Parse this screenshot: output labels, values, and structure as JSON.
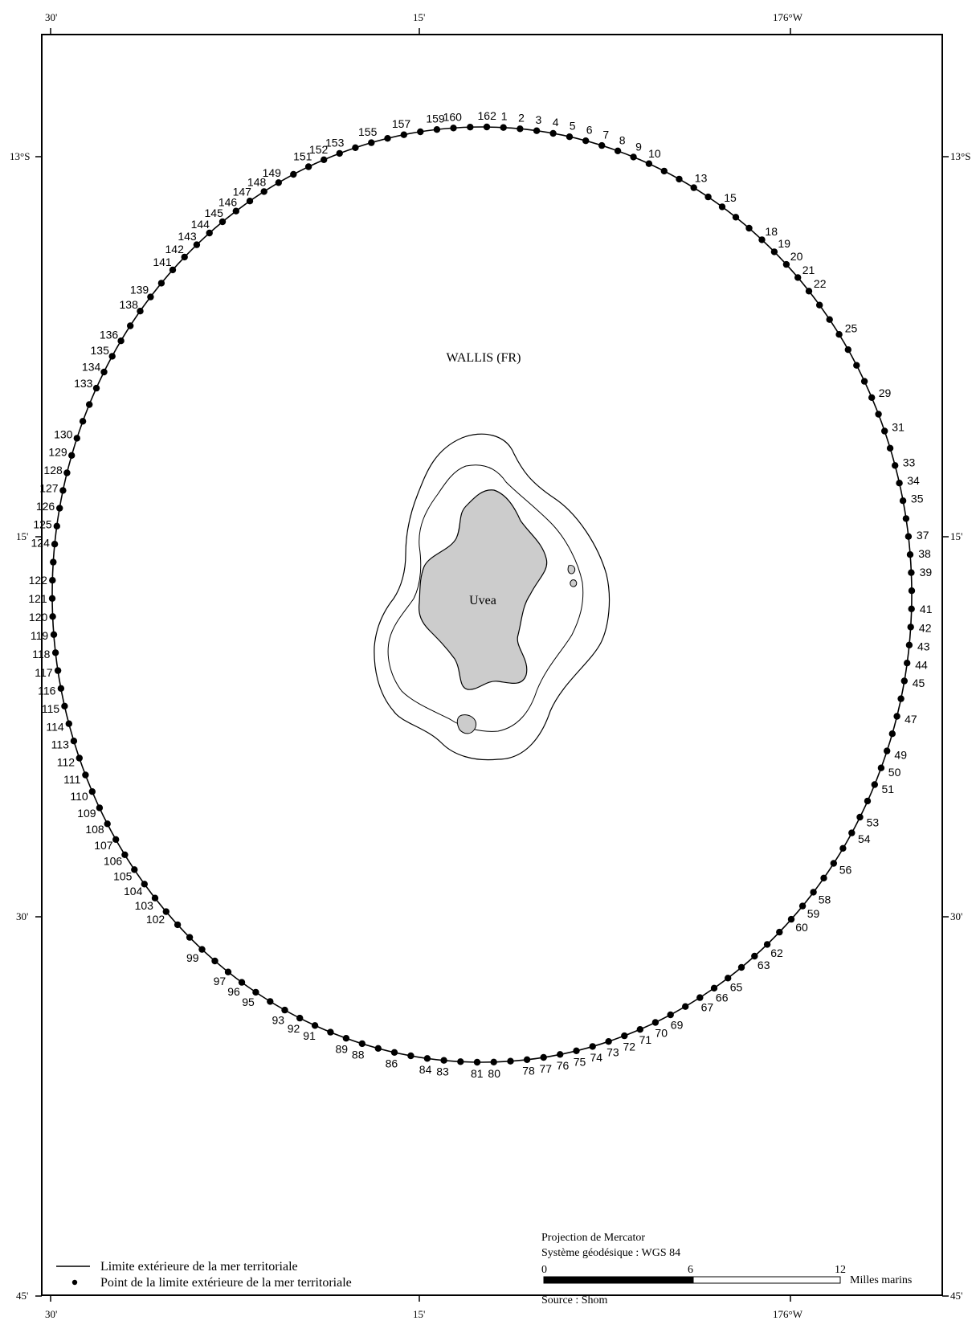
{
  "map": {
    "territory_label": "WALLIS (FR)",
    "island_label": "Uvea",
    "longitude_ticks": [
      "30'",
      "15'",
      "176°W"
    ],
    "latitude_ticks_left": [
      "13°S",
      "15'",
      "30'",
      "45'"
    ],
    "latitude_ticks_right": [
      "13°S",
      "15'",
      "30'",
      "45'"
    ],
    "colors": {
      "land": "#cccccc",
      "boundary": "#000000",
      "frame": "#000000"
    }
  },
  "boundary_points": {
    "point_count": 162,
    "labelled_points": [
      1,
      2,
      3,
      4,
      5,
      6,
      7,
      8,
      9,
      10,
      13,
      15,
      18,
      19,
      20,
      21,
      22,
      25,
      29,
      31,
      33,
      34,
      35,
      37,
      38,
      39,
      41,
      42,
      43,
      44,
      45,
      47,
      49,
      50,
      51,
      53,
      54,
      56,
      58,
      59,
      60,
      62,
      63,
      65,
      66,
      67,
      69,
      70,
      71,
      72,
      73,
      74,
      75,
      76,
      77,
      78,
      80,
      81,
      83,
      84,
      86,
      88,
      89,
      91,
      92,
      93,
      95,
      96,
      97,
      99,
      102,
      103,
      104,
      105,
      106,
      107,
      108,
      109,
      110,
      111,
      112,
      113,
      114,
      115,
      116,
      117,
      118,
      119,
      120,
      121,
      122,
      124,
      125,
      126,
      127,
      128,
      129,
      130,
      133,
      134,
      135,
      136,
      138,
      139,
      141,
      142,
      143,
      144,
      145,
      146,
      147,
      148,
      149,
      151,
      152,
      153,
      155,
      157,
      159,
      160,
      162
    ]
  },
  "legend": {
    "line_label": "Limite extérieure de la mer territoriale",
    "point_label": "Point de la limite extérieure de la mer territoriale"
  },
  "info": {
    "projection": "Projection de Mercator",
    "datum": "Système géodésique : WGS 84",
    "scale_ticks": [
      "0",
      "6",
      "12"
    ],
    "scale_unit": "Milles marins",
    "source": "Source : Shom"
  }
}
